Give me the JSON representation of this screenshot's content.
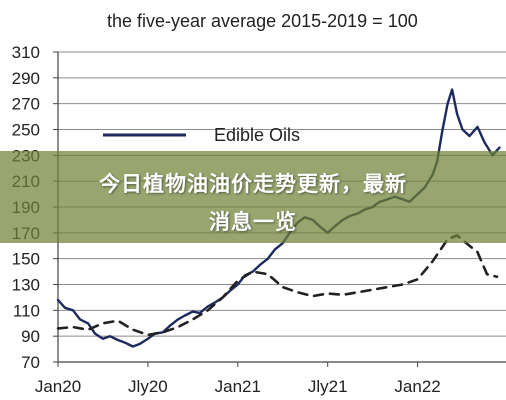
{
  "chart_data": {
    "type": "line",
    "title": "the five-year average 2015-2019 = 100",
    "xlabel": "",
    "ylabel": "",
    "ylim": [
      70,
      310
    ],
    "yticks": [
      70,
      90,
      110,
      130,
      150,
      170,
      190,
      210,
      230,
      250,
      270,
      290,
      310
    ],
    "xlim": [
      "2020-01",
      "2022-06"
    ],
    "xticks": [
      "Jan20",
      "Jly20",
      "Jan21",
      "Jly21",
      "Jan22"
    ],
    "grid": true,
    "legend": "top-left",
    "series": [
      {
        "name": "Edible Oils",
        "style": "solid",
        "color": "#1c2a5e",
        "points": [
          [
            "2020-01-01",
            118
          ],
          [
            "2020-01-15",
            112
          ],
          [
            "2020-02-01",
            110
          ],
          [
            "2020-02-15",
            103
          ],
          [
            "2020-03-01",
            100
          ],
          [
            "2020-03-15",
            92
          ],
          [
            "2020-04-01",
            88
          ],
          [
            "2020-04-15",
            90
          ],
          [
            "2020-05-01",
            87
          ],
          [
            "2020-05-15",
            85
          ],
          [
            "2020-06-01",
            82
          ],
          [
            "2020-06-15",
            84
          ],
          [
            "2020-07-01",
            88
          ],
          [
            "2020-07-15",
            92
          ],
          [
            "2020-08-01",
            93
          ],
          [
            "2020-08-15",
            98
          ],
          [
            "2020-09-01",
            103
          ],
          [
            "2020-09-15",
            106
          ],
          [
            "2020-10-01",
            109
          ],
          [
            "2020-10-15",
            108
          ],
          [
            "2020-11-01",
            113
          ],
          [
            "2020-11-15",
            116
          ],
          [
            "2020-12-01",
            120
          ],
          [
            "2020-12-15",
            125
          ],
          [
            "2021-01-01",
            130
          ],
          [
            "2021-01-15",
            137
          ],
          [
            "2021-02-01",
            140
          ],
          [
            "2021-02-15",
            145
          ],
          [
            "2021-03-01",
            150
          ],
          [
            "2021-03-15",
            157
          ],
          [
            "2021-04-01",
            162
          ],
          [
            "2021-04-15",
            170
          ],
          [
            "2021-05-01",
            178
          ],
          [
            "2021-05-15",
            182
          ],
          [
            "2021-06-01",
            180
          ],
          [
            "2021-06-15",
            175
          ],
          [
            "2021-07-01",
            170
          ],
          [
            "2021-07-15",
            175
          ],
          [
            "2021-08-01",
            180
          ],
          [
            "2021-08-15",
            183
          ],
          [
            "2021-09-01",
            185
          ],
          [
            "2021-09-15",
            188
          ],
          [
            "2021-10-01",
            190
          ],
          [
            "2021-10-15",
            194
          ],
          [
            "2021-11-01",
            196
          ],
          [
            "2021-11-15",
            198
          ],
          [
            "2021-12-01",
            196
          ],
          [
            "2021-12-15",
            194
          ],
          [
            "2022-01-01",
            200
          ],
          [
            "2022-01-15",
            205
          ],
          [
            "2022-02-01",
            215
          ],
          [
            "2022-02-10",
            225
          ],
          [
            "2022-02-20",
            248
          ],
          [
            "2022-03-01",
            270
          ],
          [
            "2022-03-10",
            281
          ],
          [
            "2022-03-20",
            262
          ],
          [
            "2022-04-01",
            250
          ],
          [
            "2022-04-15",
            245
          ],
          [
            "2022-05-01",
            252
          ],
          [
            "2022-05-15",
            240
          ],
          [
            "2022-06-01",
            230
          ],
          [
            "2022-06-15",
            236
          ]
        ]
      },
      {
        "name": "",
        "style": "dashed",
        "color": "#222222",
        "points": [
          [
            "2020-01-01",
            96
          ],
          [
            "2020-02-01",
            97
          ],
          [
            "2020-03-01",
            95
          ],
          [
            "2020-04-01",
            100
          ],
          [
            "2020-05-01",
            102
          ],
          [
            "2020-06-01",
            95
          ],
          [
            "2020-07-01",
            91
          ],
          [
            "2020-08-01",
            93
          ],
          [
            "2020-09-01",
            97
          ],
          [
            "2020-10-01",
            103
          ],
          [
            "2020-11-01",
            110
          ],
          [
            "2020-12-01",
            120
          ],
          [
            "2021-01-01",
            133
          ],
          [
            "2021-02-01",
            140
          ],
          [
            "2021-03-01",
            138
          ],
          [
            "2021-04-01",
            128
          ],
          [
            "2021-05-01",
            124
          ],
          [
            "2021-06-01",
            121
          ],
          [
            "2021-07-01",
            123
          ],
          [
            "2021-08-01",
            122
          ],
          [
            "2021-09-01",
            124
          ],
          [
            "2021-10-01",
            126
          ],
          [
            "2021-11-01",
            128
          ],
          [
            "2021-12-01",
            130
          ],
          [
            "2022-01-01",
            134
          ],
          [
            "2022-02-01",
            148
          ],
          [
            "2022-03-01",
            165
          ],
          [
            "2022-03-20",
            168
          ],
          [
            "2022-04-15",
            160
          ],
          [
            "2022-05-01",
            155
          ],
          [
            "2022-05-20",
            138
          ],
          [
            "2022-06-10",
            136
          ]
        ]
      }
    ]
  },
  "overlay": {
    "line1": "今日植物油油价走势更新，最新",
    "line2": "消息一览"
  }
}
